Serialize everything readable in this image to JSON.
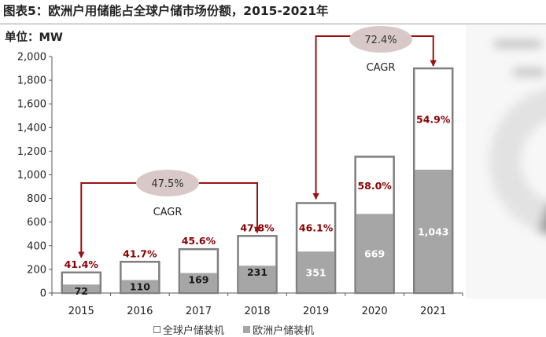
{
  "figure_title": "图表5：欧洲户用储能占全球户储市场份额，2015-2021年",
  "unit_label": "单位：MW",
  "colors": {
    "total_bar_fill": "#ffffff",
    "total_bar_stroke": "#7f7f7f",
    "europe_bar_fill": "#a6a6a6",
    "share_text": "#8b0000",
    "arrow": "#9b1111",
    "cagr_ellipse": "#d9c8c8"
  },
  "chart_data": {
    "type": "bar",
    "categories": [
      "2015",
      "2016",
      "2017",
      "2018",
      "2019",
      "2020",
      "2021"
    ],
    "series": [
      {
        "name": "全球户储装机",
        "values": [
          174,
          264,
          371,
          483,
          761,
          1153,
          1900
        ]
      },
      {
        "name": "欧洲户储装机",
        "values": [
          72,
          110,
          169,
          231,
          351,
          669,
          1043
        ]
      }
    ],
    "europe_value_labels": [
      "72",
      "110",
      "169",
      "231",
      "351",
      "669",
      "1,043"
    ],
    "share_labels": [
      "41.4%",
      "41.7%",
      "45.6%",
      "47.8%",
      "46.1%",
      "58.0%",
      "54.9%"
    ],
    "y_ticks": [
      "0",
      "200",
      "400",
      "600",
      "800",
      "1,000",
      "1,200",
      "1,400",
      "1,600",
      "1,800",
      "2,000"
    ],
    "ylim": [
      0,
      2000
    ],
    "legend_position": "bottom",
    "annotations": [
      {
        "label": "CAGR",
        "value": "47.5%",
        "from": "2015",
        "to": "2018"
      },
      {
        "label": "CAGR",
        "value": "72.4%",
        "from": "2019",
        "to": "2021"
      }
    ]
  },
  "legend": {
    "total": "全球户储装机",
    "europe": "欧洲户储装机"
  }
}
